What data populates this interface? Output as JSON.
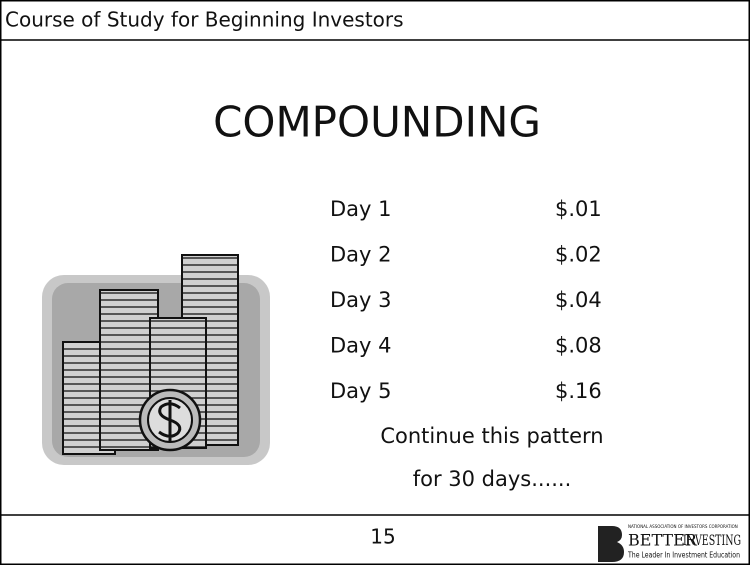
{
  "header": {
    "title": "Course of Study for Beginning Investors"
  },
  "slide": {
    "title": "COMPOUNDING",
    "rows": [
      [
        "Day 1",
        "$.01"
      ],
      [
        "Day 2",
        "$.02"
      ],
      [
        "Day 3",
        "$.04"
      ],
      [
        "Day 4",
        "$.08"
      ],
      [
        "Day 5",
        "$.16"
      ]
    ],
    "note": [
      "Continue this pattern",
      "for 30 days......"
    ]
  },
  "footer": {
    "page": "15",
    "logo": {
      "org": "NATIONAL ASSOCIATION OF INVESTORS CORPORATION",
      "name_1": "BETTER",
      "name_2": "INVESTING",
      "tagline": "The Leader In Investment Education"
    }
  }
}
